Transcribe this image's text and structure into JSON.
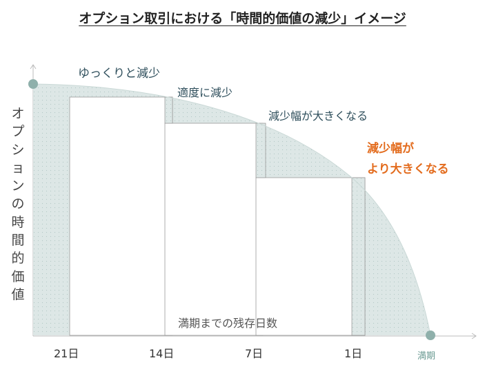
{
  "title": "オプション取引における「時間的価値の減少」イメージ",
  "y_axis_label": "オプションの時間的価値",
  "x_axis_label": "満期までの残存日数",
  "x_ticks": [
    "21日",
    "14日",
    "7日",
    "1日"
  ],
  "expiry_label": "満期",
  "annotations": {
    "slow": "ゆっくりと減少",
    "moderate": "適度に減少",
    "larger": "減少幅が大きくなる",
    "largest_line1": "減少幅が",
    "largest_line2": "より大きくなる"
  },
  "colors": {
    "curve_fill": "#dde7e6",
    "curve_dot": "#b3c9c6",
    "marker": "#8fb0ab",
    "emphasis": "#e36c1e",
    "axis": "#bbbbbb"
  }
}
